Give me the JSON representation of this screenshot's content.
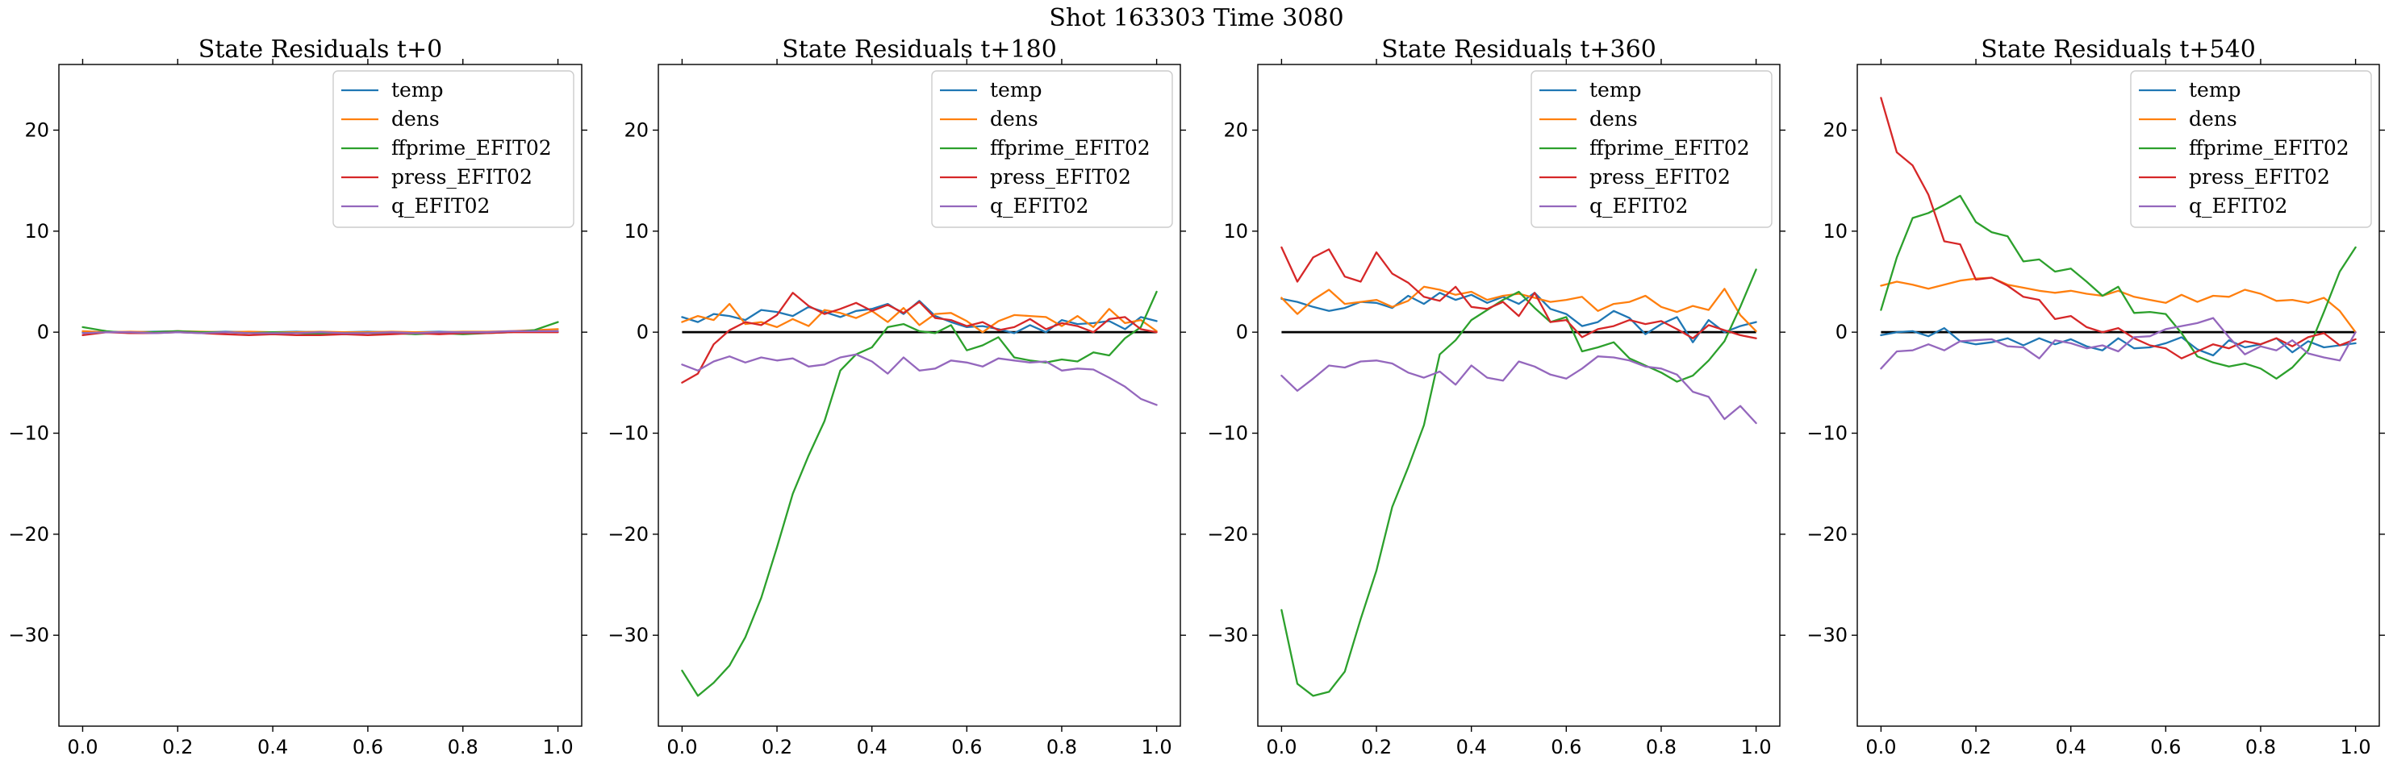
{
  "figure": {
    "suptitle": "Shot 163303   Time 3080"
  },
  "colors": {
    "temp": "#1f77b4",
    "dens": "#ff7f0e",
    "ffprime_EFIT02": "#2ca02c",
    "press_EFIT02": "#d62728",
    "q_EFIT02": "#9467bd",
    "zero_line": "#000000"
  },
  "chart_data": [
    {
      "type": "line",
      "title": "State Residuals t+0",
      "xlim": [
        -0.05,
        1.05
      ],
      "ylim": [
        -39,
        26.5
      ],
      "xticks": [
        "0.0",
        "0.2",
        "0.4",
        "0.6",
        "0.8",
        "1.0"
      ],
      "yticks": [
        "20",
        "10",
        "0",
        "−10",
        "−20",
        "−30"
      ],
      "legend": "top-right",
      "zero_line": false,
      "x": [
        0.0,
        0.05,
        0.1,
        0.15,
        0.2,
        0.25,
        0.3,
        0.35,
        0.4,
        0.45,
        0.5,
        0.55,
        0.6,
        0.65,
        0.7,
        0.75,
        0.8,
        0.85,
        0.9,
        0.95,
        1.0
      ],
      "series": [
        {
          "name": "temp",
          "values": [
            0.0,
            0.05,
            0.0,
            0.05,
            0.1,
            0.0,
            0.05,
            0.0,
            0.0,
            0.05,
            0.0,
            0.0,
            0.05,
            0.0,
            0.0,
            0.05,
            0.0,
            0.0,
            0.05,
            0.05,
            0.1
          ]
        },
        {
          "name": "dens",
          "values": [
            0.1,
            0.0,
            0.05,
            0.0,
            0.1,
            0.05,
            0.0,
            0.05,
            0.0,
            0.0,
            0.05,
            0.0,
            0.0,
            0.05,
            0.0,
            0.0,
            0.05,
            0.05,
            0.1,
            0.2,
            0.3
          ]
        },
        {
          "name": "ffprime_EFIT02",
          "values": [
            0.5,
            0.1,
            -0.1,
            0.0,
            0.1,
            0.0,
            0.0,
            -0.1,
            0.0,
            -0.1,
            -0.2,
            -0.1,
            -0.1,
            -0.1,
            -0.2,
            -0.1,
            -0.2,
            -0.1,
            0.0,
            0.2,
            1.0
          ]
        },
        {
          "name": "press_EFIT02",
          "values": [
            -0.3,
            0.0,
            -0.1,
            -0.1,
            0.0,
            -0.1,
            -0.2,
            -0.3,
            -0.2,
            -0.3,
            -0.3,
            -0.2,
            -0.3,
            -0.2,
            -0.1,
            -0.2,
            -0.1,
            -0.1,
            0.0,
            0.0,
            0.0
          ]
        },
        {
          "name": "q_EFIT02",
          "values": [
            -0.1,
            0.0,
            0.0,
            -0.1,
            0.0,
            -0.1,
            0.0,
            -0.1,
            -0.1,
            -0.1,
            0.0,
            -0.1,
            -0.1,
            0.0,
            -0.1,
            0.0,
            0.0,
            0.0,
            0.1,
            0.1,
            0.1
          ]
        }
      ]
    },
    {
      "type": "line",
      "title": "State Residuals t+180",
      "xlim": [
        -0.05,
        1.05
      ],
      "ylim": [
        -39,
        26.5
      ],
      "xticks": [
        "0.0",
        "0.2",
        "0.4",
        "0.6",
        "0.8",
        "1.0"
      ],
      "yticks": [
        "20",
        "10",
        "0",
        "−10",
        "−20",
        "−30"
      ],
      "legend": "top-right",
      "zero_line": true,
      "x": [
        0.0,
        0.0333,
        0.0667,
        0.1,
        0.1333,
        0.1667,
        0.2,
        0.2333,
        0.2667,
        0.3,
        0.3333,
        0.3667,
        0.4,
        0.4333,
        0.4667,
        0.5,
        0.5333,
        0.5667,
        0.6,
        0.6333,
        0.6667,
        0.7,
        0.7333,
        0.7667,
        0.8,
        0.8333,
        0.8667,
        0.9,
        0.9333,
        0.9667,
        1.0
      ],
      "series": [
        {
          "name": "temp",
          "values": [
            1.5,
            1.0,
            1.8,
            1.6,
            1.2,
            2.2,
            2.0,
            1.6,
            2.5,
            2.0,
            1.5,
            2.1,
            2.3,
            2.8,
            1.8,
            3.1,
            1.6,
            1.0,
            0.5,
            0.6,
            0.3,
            -0.1,
            0.7,
            0.0,
            1.2,
            0.8,
            0.9,
            1.1,
            0.3,
            1.5,
            1.1
          ]
        },
        {
          "name": "dens",
          "values": [
            1.0,
            1.6,
            1.2,
            2.8,
            0.8,
            1.0,
            0.5,
            1.3,
            0.6,
            2.2,
            1.9,
            1.4,
            2.1,
            1.0,
            2.4,
            0.7,
            1.8,
            1.9,
            1.1,
            0.0,
            1.1,
            1.7,
            1.6,
            1.5,
            0.6,
            1.6,
            0.5,
            2.3,
            0.9,
            1.2,
            0.1
          ]
        },
        {
          "name": "ffprime_EFIT02",
          "values": [
            -33.5,
            -36.0,
            -34.7,
            -33.0,
            -30.2,
            -26.3,
            -21.3,
            -16.0,
            -12.2,
            -8.8,
            -3.8,
            -2.2,
            -1.5,
            0.5,
            0.8,
            0.1,
            -0.1,
            0.7,
            -1.8,
            -1.3,
            -0.5,
            -2.5,
            -2.8,
            -3.0,
            -2.7,
            -2.9,
            -2.0,
            -2.3,
            -0.6,
            0.5,
            4.0
          ]
        },
        {
          "name": "press_EFIT02",
          "values": [
            -5.0,
            -4.1,
            -1.2,
            0.2,
            1.0,
            0.7,
            1.7,
            3.9,
            2.6,
            1.8,
            2.3,
            2.9,
            2.1,
            2.7,
            1.9,
            3.0,
            1.4,
            1.2,
            0.6,
            1.0,
            0.2,
            0.5,
            1.3,
            0.3,
            0.9,
            0.6,
            0.0,
            1.3,
            1.5,
            0.3,
            0.0
          ]
        },
        {
          "name": "q_EFIT02",
          "values": [
            -3.2,
            -3.8,
            -2.9,
            -2.4,
            -3.0,
            -2.5,
            -2.8,
            -2.6,
            -3.4,
            -3.2,
            -2.5,
            -2.2,
            -2.9,
            -4.1,
            -2.5,
            -3.8,
            -3.6,
            -2.8,
            -3.0,
            -3.4,
            -2.6,
            -2.8,
            -3.0,
            -2.9,
            -3.8,
            -3.6,
            -3.7,
            -4.5,
            -5.4,
            -6.6,
            -7.2
          ]
        }
      ]
    },
    {
      "type": "line",
      "title": "State Residuals t+360",
      "xlim": [
        -0.05,
        1.05
      ],
      "ylim": [
        -39,
        26.5
      ],
      "xticks": [
        "0.0",
        "0.2",
        "0.4",
        "0.6",
        "0.8",
        "1.0"
      ],
      "yticks": [
        "20",
        "10",
        "0",
        "−10",
        "−20",
        "−30"
      ],
      "legend": "top-right",
      "zero_line": true,
      "x": [
        0.0,
        0.0333,
        0.0667,
        0.1,
        0.1333,
        0.1667,
        0.2,
        0.2333,
        0.2667,
        0.3,
        0.3333,
        0.3667,
        0.4,
        0.4333,
        0.4667,
        0.5,
        0.5333,
        0.5667,
        0.6,
        0.6333,
        0.6667,
        0.7,
        0.7333,
        0.7667,
        0.8,
        0.8333,
        0.8667,
        0.9,
        0.9333,
        0.9667,
        1.0
      ],
      "series": [
        {
          "name": "temp",
          "values": [
            3.3,
            3.0,
            2.5,
            2.1,
            2.4,
            3.0,
            2.9,
            2.4,
            3.6,
            2.8,
            3.9,
            3.2,
            3.7,
            2.9,
            3.5,
            2.8,
            3.9,
            2.3,
            1.8,
            0.6,
            1.0,
            2.1,
            1.4,
            -0.2,
            0.8,
            1.5,
            -1.0,
            1.2,
            0.0,
            0.6,
            1.0
          ]
        },
        {
          "name": "dens",
          "values": [
            3.4,
            1.8,
            3.2,
            4.2,
            2.8,
            3.0,
            3.2,
            2.5,
            3.1,
            4.5,
            4.2,
            3.7,
            4.0,
            3.2,
            3.6,
            3.8,
            3.4,
            3.0,
            3.2,
            3.5,
            2.1,
            2.8,
            3.0,
            3.6,
            2.5,
            2.0,
            2.6,
            2.2,
            4.3,
            1.7,
            0.1
          ]
        },
        {
          "name": "ffprime_EFIT02",
          "values": [
            -27.5,
            -34.8,
            -36.0,
            -35.6,
            -33.6,
            -28.4,
            -23.6,
            -17.3,
            -13.4,
            -9.2,
            -2.2,
            -0.8,
            1.2,
            2.2,
            3.2,
            4.0,
            2.4,
            1.0,
            1.5,
            -1.9,
            -1.5,
            -1.0,
            -2.6,
            -3.3,
            -4.0,
            -4.9,
            -4.3,
            -2.8,
            -0.9,
            2.5,
            6.2
          ]
        },
        {
          "name": "press_EFIT02",
          "values": [
            8.4,
            5.0,
            7.4,
            8.2,
            5.5,
            5.0,
            7.9,
            5.8,
            4.9,
            3.5,
            3.1,
            4.5,
            2.5,
            2.3,
            3.0,
            1.6,
            3.9,
            1.0,
            1.2,
            -0.5,
            0.3,
            0.6,
            1.2,
            0.8,
            1.1,
            0.3,
            -0.6,
            0.7,
            0.2,
            -0.3,
            -0.6
          ]
        },
        {
          "name": "q_EFIT02",
          "values": [
            -4.3,
            -5.8,
            -4.6,
            -3.3,
            -3.5,
            -2.9,
            -2.8,
            -3.1,
            -4.0,
            -4.5,
            -3.9,
            -5.2,
            -3.3,
            -4.5,
            -4.8,
            -2.9,
            -3.4,
            -4.2,
            -4.6,
            -3.6,
            -2.4,
            -2.5,
            -2.8,
            -3.4,
            -3.6,
            -4.2,
            -5.9,
            -6.4,
            -8.6,
            -7.3,
            -9.0
          ]
        }
      ]
    },
    {
      "type": "line",
      "title": "State Residuals t+540",
      "xlim": [
        -0.05,
        1.05
      ],
      "ylim": [
        -39,
        26.5
      ],
      "xticks": [
        "0.0",
        "0.2",
        "0.4",
        "0.6",
        "0.8",
        "1.0"
      ],
      "yticks": [
        "20",
        "10",
        "0",
        "−10",
        "−20",
        "−30"
      ],
      "legend": "top-right",
      "zero_line": true,
      "x": [
        0.0,
        0.0333,
        0.0667,
        0.1,
        0.1333,
        0.1667,
        0.2,
        0.2333,
        0.2667,
        0.3,
        0.3333,
        0.3667,
        0.4,
        0.4333,
        0.4667,
        0.5,
        0.5333,
        0.5667,
        0.6,
        0.6333,
        0.6667,
        0.7,
        0.7333,
        0.7667,
        0.8,
        0.8333,
        0.8667,
        0.9,
        0.9333,
        0.9667,
        1.0
      ],
      "series": [
        {
          "name": "temp",
          "values": [
            -0.3,
            0.0,
            0.1,
            -0.4,
            0.4,
            -0.9,
            -1.2,
            -1.0,
            -0.6,
            -1.3,
            -0.6,
            -1.2,
            -0.7,
            -1.4,
            -1.8,
            -0.6,
            -1.6,
            -1.5,
            -1.1,
            -0.5,
            -1.7,
            -2.3,
            -0.8,
            -1.5,
            -1.2,
            -0.6,
            -2.0,
            -0.9,
            -1.5,
            -1.3,
            -1.1
          ]
        },
        {
          "name": "dens",
          "values": [
            4.6,
            5.0,
            4.7,
            4.3,
            4.7,
            5.1,
            5.3,
            5.4,
            4.7,
            4.4,
            4.1,
            3.9,
            4.1,
            3.8,
            3.6,
            4.1,
            3.5,
            3.2,
            2.9,
            3.7,
            3.0,
            3.6,
            3.5,
            4.2,
            3.8,
            3.1,
            3.2,
            2.9,
            3.4,
            2.1,
            0.0
          ]
        },
        {
          "name": "ffprime_EFIT02",
          "values": [
            2.2,
            7.4,
            11.3,
            11.8,
            12.6,
            13.5,
            10.9,
            9.9,
            9.5,
            7.0,
            7.2,
            6.0,
            6.3,
            5.0,
            3.6,
            4.5,
            1.9,
            2.0,
            1.8,
            -0.1,
            -2.4,
            -3.0,
            -3.4,
            -3.1,
            -3.6,
            -4.6,
            -3.5,
            -1.8,
            2.0,
            6.0,
            8.4
          ]
        },
        {
          "name": "press_EFIT02",
          "values": [
            23.2,
            17.8,
            16.5,
            13.6,
            9.0,
            8.7,
            5.2,
            5.4,
            4.6,
            3.5,
            3.2,
            1.3,
            1.6,
            0.5,
            0.0,
            0.4,
            -0.6,
            -1.3,
            -1.6,
            -2.6,
            -1.9,
            -1.2,
            -1.6,
            -0.9,
            -1.2,
            -0.6,
            -1.4,
            -0.5,
            -0.1,
            -1.3,
            -0.7
          ]
        },
        {
          "name": "q_EFIT02",
          "values": [
            -3.6,
            -1.9,
            -1.8,
            -1.2,
            -1.8,
            -0.9,
            -0.8,
            -0.7,
            -1.4,
            -1.5,
            -2.6,
            -0.8,
            -1.1,
            -1.6,
            -1.3,
            -1.9,
            -0.5,
            -0.4,
            0.3,
            0.6,
            0.9,
            1.4,
            -0.5,
            -2.2,
            -1.4,
            -1.8,
            -0.8,
            -2.1,
            -2.5,
            -2.8,
            0.0
          ]
        }
      ]
    }
  ]
}
